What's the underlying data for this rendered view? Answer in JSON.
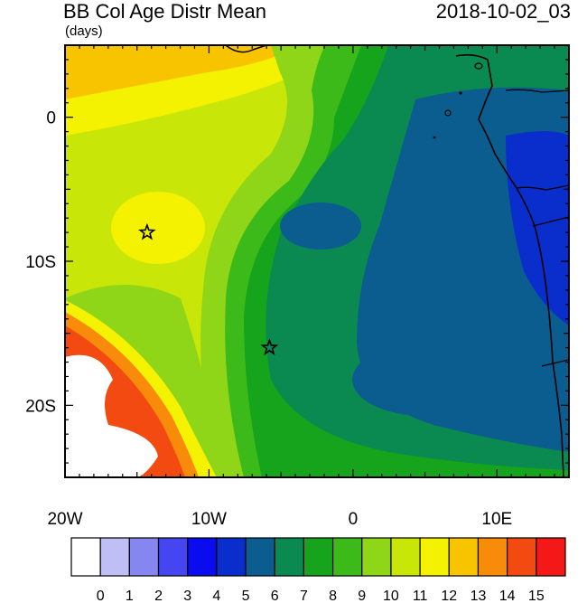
{
  "title": "BB Col Age Distr Mean",
  "time": "2018-10-02_03",
  "units": "(days)",
  "axes": {
    "lon_ticks": [
      {
        "lon": -20,
        "label": "20W"
      },
      {
        "lon": -10,
        "label": "10W"
      },
      {
        "lon": 0,
        "label": "0"
      },
      {
        "lon": 10,
        "label": "10E"
      }
    ],
    "lat_ticks": [
      {
        "lat": 0,
        "label": "0"
      },
      {
        "lat": -10,
        "label": "10S"
      },
      {
        "lat": -20,
        "label": "20S"
      }
    ],
    "lon_range": [
      -20,
      15
    ],
    "lat_range": [
      -25,
      5
    ]
  },
  "markers": [
    {
      "name": "star-marker-1",
      "lon": -14.3,
      "lat": -8.0
    },
    {
      "name": "star-marker-2",
      "lon": -5.8,
      "lat": -16.0
    }
  ],
  "colorbar": {
    "labels": [
      "0",
      "1",
      "2",
      "3",
      "4",
      "5",
      "6",
      "7",
      "8",
      "9",
      "10",
      "11",
      "12",
      "13",
      "14",
      "15"
    ],
    "colors": [
      "#ffffff",
      "#bfbff5",
      "#8686f0",
      "#4545f2",
      "#0b0bf0",
      "#0a2ecc",
      "#0b5c8f",
      "#0a8a50",
      "#16a41c",
      "#3cba1a",
      "#8fd518",
      "#c8e608",
      "#f4f200",
      "#f8c400",
      "#f88b0a",
      "#f24a10",
      "#f41818"
    ]
  }
}
